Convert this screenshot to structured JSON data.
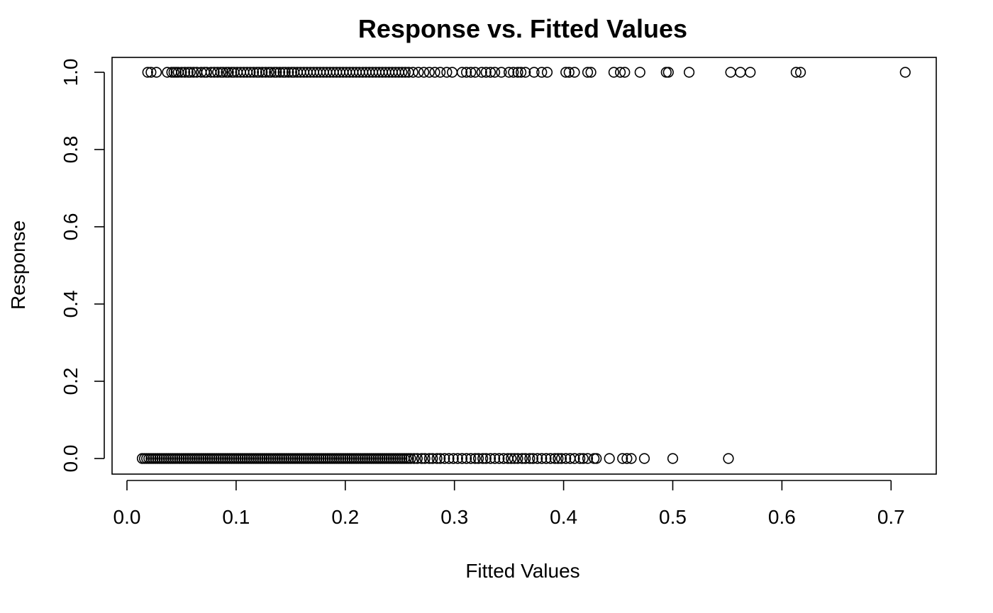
{
  "chart_data": {
    "type": "scatter",
    "title": "Response vs. Fitted Values",
    "xlabel": "Fitted Values",
    "ylabel": "Response",
    "xlim": [
      0.0,
      0.7
    ],
    "ylim": [
      0.0,
      1.0
    ],
    "x_ticks": [
      "0.0",
      "0.1",
      "0.2",
      "0.3",
      "0.4",
      "0.5",
      "0.6",
      "0.7"
    ],
    "y_ticks": [
      "0.0",
      "0.2",
      "0.4",
      "0.6",
      "0.8",
      "1.0"
    ],
    "grid": false,
    "legend": "none",
    "series": [
      {
        "y": 1,
        "x": [
          0.019,
          0.022,
          0.027,
          0.037,
          0.041,
          0.043,
          0.045,
          0.047,
          0.05,
          0.053,
          0.056,
          0.058,
          0.061,
          0.064,
          0.068,
          0.071,
          0.073,
          0.077,
          0.08,
          0.083,
          0.086,
          0.088,
          0.091,
          0.093,
          0.096,
          0.098,
          0.101,
          0.104,
          0.107,
          0.11,
          0.113,
          0.116,
          0.119,
          0.121,
          0.124,
          0.127,
          0.13,
          0.132,
          0.135,
          0.137,
          0.14,
          0.143,
          0.145,
          0.148,
          0.151,
          0.153,
          0.156,
          0.159,
          0.162,
          0.165,
          0.168,
          0.171,
          0.174,
          0.177,
          0.18,
          0.183,
          0.186,
          0.189,
          0.192,
          0.195,
          0.198,
          0.201,
          0.204,
          0.207,
          0.21,
          0.213,
          0.216,
          0.219,
          0.222,
          0.225,
          0.228,
          0.231,
          0.234,
          0.237,
          0.24,
          0.243,
          0.246,
          0.249,
          0.252,
          0.255,
          0.258,
          0.262,
          0.267,
          0.272,
          0.277,
          0.282,
          0.287,
          0.293,
          0.298,
          0.307,
          0.311,
          0.315,
          0.319,
          0.325,
          0.329,
          0.333,
          0.337,
          0.343,
          0.35,
          0.354,
          0.358,
          0.361,
          0.365,
          0.373,
          0.38,
          0.385,
          0.402,
          0.405,
          0.41,
          0.422,
          0.425,
          0.446,
          0.452,
          0.456,
          0.47,
          0.494,
          0.496,
          0.515,
          0.553,
          0.562,
          0.571,
          0.613,
          0.617,
          0.713
        ]
      },
      {
        "y": 0,
        "x": [
          0.014,
          0.016,
          0.018,
          0.02,
          0.022,
          0.024,
          0.026,
          0.028,
          0.03,
          0.032,
          0.034,
          0.036,
          0.038,
          0.04,
          0.042,
          0.044,
          0.046,
          0.048,
          0.05,
          0.052,
          0.054,
          0.056,
          0.058,
          0.06,
          0.062,
          0.064,
          0.066,
          0.068,
          0.07,
          0.072,
          0.074,
          0.076,
          0.078,
          0.08,
          0.082,
          0.084,
          0.086,
          0.088,
          0.09,
          0.092,
          0.094,
          0.096,
          0.098,
          0.1,
          0.102,
          0.104,
          0.106,
          0.108,
          0.11,
          0.112,
          0.114,
          0.116,
          0.118,
          0.12,
          0.122,
          0.124,
          0.126,
          0.128,
          0.13,
          0.132,
          0.134,
          0.136,
          0.138,
          0.14,
          0.142,
          0.144,
          0.146,
          0.148,
          0.15,
          0.152,
          0.154,
          0.156,
          0.158,
          0.16,
          0.162,
          0.164,
          0.166,
          0.168,
          0.17,
          0.172,
          0.174,
          0.176,
          0.178,
          0.18,
          0.182,
          0.184,
          0.186,
          0.188,
          0.19,
          0.192,
          0.194,
          0.196,
          0.198,
          0.2,
          0.202,
          0.204,
          0.206,
          0.208,
          0.21,
          0.212,
          0.214,
          0.216,
          0.218,
          0.22,
          0.222,
          0.224,
          0.226,
          0.228,
          0.23,
          0.232,
          0.234,
          0.236,
          0.238,
          0.24,
          0.242,
          0.244,
          0.246,
          0.248,
          0.25,
          0.252,
          0.254,
          0.256,
          0.258,
          0.26,
          0.263,
          0.266,
          0.27,
          0.273,
          0.277,
          0.28,
          0.284,
          0.287,
          0.291,
          0.295,
          0.299,
          0.303,
          0.307,
          0.311,
          0.315,
          0.319,
          0.322,
          0.326,
          0.329,
          0.333,
          0.337,
          0.341,
          0.345,
          0.349,
          0.352,
          0.355,
          0.358,
          0.362,
          0.365,
          0.369,
          0.372,
          0.376,
          0.38,
          0.384,
          0.388,
          0.392,
          0.395,
          0.398,
          0.402,
          0.406,
          0.41,
          0.415,
          0.418,
          0.422,
          0.428,
          0.43,
          0.442,
          0.454,
          0.458,
          0.462,
          0.474,
          0.5,
          0.551
        ]
      }
    ]
  }
}
